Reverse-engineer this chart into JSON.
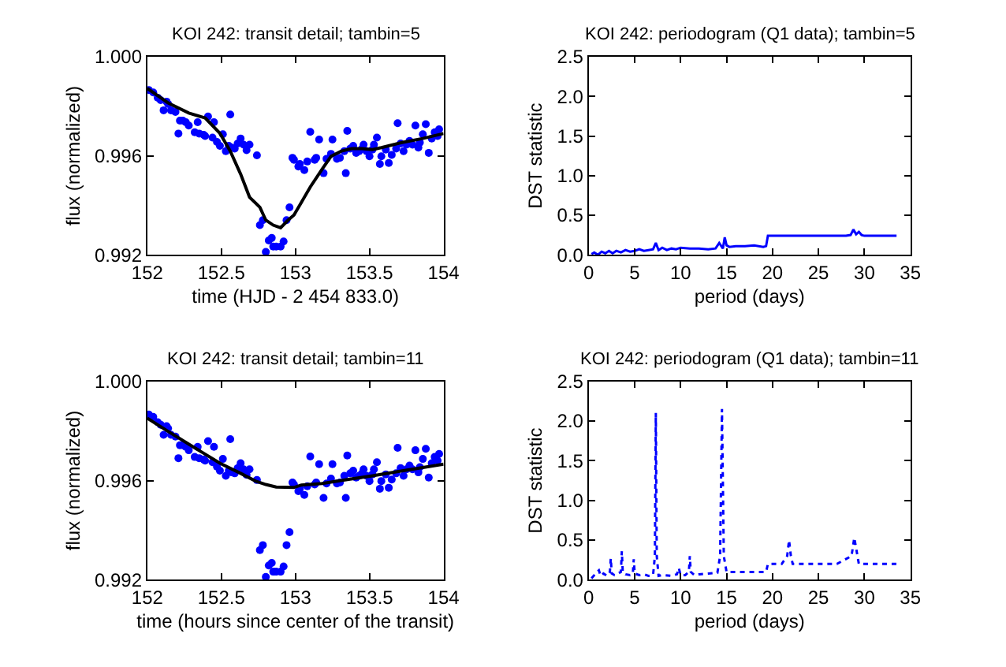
{
  "chart_data": [
    {
      "type": "scatter",
      "title": "KOI 242: transit detail; tambin=5",
      "xlabel": "time (HJD - 2 454 833.0)",
      "ylabel": "flux (normalized)",
      "xlim": [
        152,
        154
      ],
      "ylim": [
        0.992,
        1.0
      ],
      "xticks": [
        152,
        152.5,
        153,
        153.5,
        154
      ],
      "yticks": [
        {
          "value": 0.992,
          "label": "0.992"
        },
        {
          "value": 0.996,
          "label": "0.996"
        },
        {
          "value": 1.0,
          "label": "1.000"
        }
      ],
      "series": [
        {
          "marker": "circle",
          "color": "#0000ff",
          "x": [
            152.01,
            152.04,
            152.07,
            152.09,
            152.11,
            152.13,
            152.14,
            152.16,
            152.19,
            152.21,
            152.22,
            152.24,
            152.26,
            152.28,
            152.32,
            152.34,
            152.35,
            152.38,
            152.39,
            152.41,
            152.44,
            152.45,
            152.47,
            152.49,
            152.51,
            152.53,
            152.55,
            152.56,
            152.57,
            152.59,
            152.61,
            152.63,
            152.65,
            152.67,
            152.69,
            152.74,
            152.76,
            152.78,
            152.8,
            152.82,
            152.84,
            152.85,
            152.87,
            152.9,
            152.92,
            152.94,
            152.96,
            152.98,
            152.99,
            153.02,
            153.03,
            153.06,
            153.08,
            153.1,
            153.13,
            153.14,
            153.16,
            153.19,
            153.21,
            153.24,
            153.25,
            153.28,
            153.3,
            153.33,
            153.34,
            153.35,
            153.37,
            153.39,
            153.41,
            153.43,
            153.45,
            153.46,
            153.48,
            153.5,
            153.52,
            153.53,
            153.55,
            153.57,
            153.58,
            153.61,
            153.63,
            153.65,
            153.68,
            153.69,
            153.71,
            153.73,
            153.75,
            153.77,
            153.79,
            153.81,
            153.83,
            153.84,
            153.86,
            153.88,
            153.9,
            153.92,
            153.94,
            153.96,
            153.97
          ],
          "values": [
            0.99866,
            0.99856,
            0.99835,
            0.99825,
            0.99784,
            0.99819,
            0.9981,
            0.99784,
            0.99777,
            0.9969,
            0.99742,
            0.99742,
            0.99736,
            0.99722,
            0.99695,
            0.99736,
            0.9969,
            0.99685,
            0.9968,
            0.99759,
            0.99674,
            0.99736,
            0.99656,
            0.9964,
            0.99687,
            0.99619,
            0.9964,
            0.99767,
            0.99633,
            0.99629,
            0.9965,
            0.9967,
            0.99645,
            0.99623,
            0.99645,
            0.99602,
            0.9932,
            0.9934,
            0.99212,
            0.99258,
            0.99268,
            0.99233,
            0.99233,
            0.99233,
            0.99254,
            0.9934,
            0.99392,
            0.99592,
            0.99584,
            0.99557,
            0.99567,
            0.99542,
            0.99577,
            0.99697,
            0.99584,
            0.99592,
            0.99666,
            0.9953,
            0.99588,
            0.99608,
            0.99666,
            0.99588,
            0.99592,
            0.99619,
            0.9953,
            0.99701,
            0.99629,
            0.9964,
            0.99612,
            0.99619,
            0.99629,
            0.99645,
            0.99619,
            0.99598,
            0.99625,
            0.99645,
            0.99674,
            0.99567,
            0.99598,
            0.99625,
            0.99571,
            0.99604,
            0.99629,
            0.99732,
            0.9965,
            0.99619,
            0.99645,
            0.9966,
            0.99645,
            0.99722,
            0.99633,
            0.99654,
            0.99687,
            0.99728,
            0.99612,
            0.9967,
            0.99695,
            0.9968,
            0.99707
          ]
        },
        {
          "type": "line",
          "color": "#000000",
          "x": [
            152,
            152.14,
            152.28,
            152.39,
            152.49,
            152.56,
            152.63,
            152.69,
            152.76,
            152.8,
            152.85,
            152.9,
            152.95,
            152.99,
            153.04,
            153.1,
            153.18,
            153.24,
            153.31,
            153.38,
            153.45,
            153.52,
            153.58,
            153.72,
            153.86,
            154
          ],
          "values": [
            0.99872,
            0.99814,
            0.99773,
            0.99753,
            0.99691,
            0.99619,
            0.99526,
            0.99433,
            0.99392,
            0.9934,
            0.9932,
            0.99309,
            0.9934,
            0.99361,
            0.99412,
            0.99474,
            0.99546,
            0.99598,
            0.99619,
            0.99629,
            0.99629,
            0.99625,
            0.99633,
            0.99654,
            0.9967,
            0.9969
          ]
        }
      ]
    },
    {
      "type": "line",
      "title": "KOI 242: periodogram (Q1 data); tambin=5",
      "xlabel": "period (days)",
      "ylabel": "DST statistic",
      "xlim": [
        0,
        35
      ],
      "ylim": [
        0,
        2.5
      ],
      "xticks": [
        0,
        5,
        10,
        15,
        20,
        25,
        30,
        35
      ],
      "yticks": [
        {
          "value": 0,
          "label": "0.0"
        },
        {
          "value": 0.5,
          "label": "0.5"
        },
        {
          "value": 1,
          "label": "1.0"
        },
        {
          "value": 1.5,
          "label": "1.5"
        },
        {
          "value": 2,
          "label": "2.0"
        },
        {
          "value": 2.5,
          "label": "2.5"
        }
      ],
      "series": [
        {
          "line_style": "solid",
          "color": "#0000ff",
          "x": [
            0.3,
            0.6,
            1,
            1.4,
            1.8,
            2.2,
            2.6,
            3,
            3.5,
            4,
            4.5,
            5,
            5.5,
            6,
            6.5,
            7,
            7.3,
            7.6,
            8,
            8.5,
            9,
            9.5,
            10,
            11,
            12,
            13,
            13.8,
            14.2,
            14.6,
            14.8,
            15,
            15.3,
            16,
            17,
            18,
            19,
            19.3,
            19.5,
            20,
            22,
            24,
            26,
            28,
            28.5,
            28.8,
            29.1,
            29.4,
            29.7,
            30,
            31,
            32,
            33.5
          ],
          "values": [
            0.01,
            0.03,
            0.0,
            0.04,
            0.02,
            0.05,
            0.02,
            0.05,
            0.03,
            0.06,
            0.04,
            0.05,
            0.07,
            0.05,
            0.06,
            0.07,
            0.15,
            0.06,
            0.09,
            0.06,
            0.08,
            0.07,
            0.09,
            0.08,
            0.08,
            0.07,
            0.08,
            0.15,
            0.08,
            0.22,
            0.12,
            0.1,
            0.11,
            0.11,
            0.12,
            0.1,
            0.11,
            0.24,
            0.24,
            0.24,
            0.24,
            0.24,
            0.24,
            0.25,
            0.32,
            0.26,
            0.29,
            0.25,
            0.24,
            0.24,
            0.24,
            0.24
          ]
        }
      ]
    },
    {
      "type": "scatter",
      "title": "KOI 242: transit detail; tambin=11",
      "xlabel": "time (hours since center of the transit)",
      "ylabel": "flux (normalized)",
      "xlim": [
        152,
        154
      ],
      "ylim": [
        0.992,
        1.0
      ],
      "xticks": [
        152,
        152.5,
        153,
        153.5,
        154
      ],
      "yticks": [
        {
          "value": 0.992,
          "label": "0.992"
        },
        {
          "value": 0.996,
          "label": "0.996"
        },
        {
          "value": 1.0,
          "label": "1.000"
        }
      ],
      "series": [
        {
          "marker": "circle",
          "color": "#0000ff",
          "x": [
            152.01,
            152.04,
            152.07,
            152.09,
            152.11,
            152.13,
            152.14,
            152.16,
            152.19,
            152.21,
            152.22,
            152.24,
            152.26,
            152.28,
            152.32,
            152.34,
            152.35,
            152.38,
            152.39,
            152.41,
            152.44,
            152.45,
            152.47,
            152.49,
            152.51,
            152.53,
            152.55,
            152.56,
            152.57,
            152.59,
            152.61,
            152.63,
            152.65,
            152.67,
            152.69,
            152.74,
            152.76,
            152.78,
            152.8,
            152.82,
            152.84,
            152.85,
            152.87,
            152.9,
            152.92,
            152.94,
            152.96,
            152.98,
            152.99,
            153.02,
            153.03,
            153.06,
            153.08,
            153.1,
            153.13,
            153.14,
            153.16,
            153.19,
            153.21,
            153.24,
            153.25,
            153.28,
            153.3,
            153.33,
            153.34,
            153.35,
            153.37,
            153.39,
            153.41,
            153.43,
            153.45,
            153.46,
            153.48,
            153.5,
            153.52,
            153.53,
            153.55,
            153.57,
            153.58,
            153.61,
            153.63,
            153.65,
            153.68,
            153.69,
            153.71,
            153.73,
            153.75,
            153.77,
            153.79,
            153.81,
            153.83,
            153.84,
            153.86,
            153.88,
            153.9,
            153.92,
            153.94,
            153.96,
            153.97
          ],
          "values": [
            0.99866,
            0.99856,
            0.99835,
            0.99825,
            0.99784,
            0.99819,
            0.9981,
            0.99784,
            0.99777,
            0.9969,
            0.99742,
            0.99742,
            0.99736,
            0.99722,
            0.99695,
            0.99736,
            0.9969,
            0.99685,
            0.9968,
            0.99759,
            0.99674,
            0.99736,
            0.99656,
            0.9964,
            0.99687,
            0.99619,
            0.9964,
            0.99767,
            0.99633,
            0.99629,
            0.9965,
            0.9967,
            0.99645,
            0.99623,
            0.99645,
            0.99602,
            0.9932,
            0.9934,
            0.99212,
            0.99258,
            0.99268,
            0.99233,
            0.99233,
            0.99233,
            0.99254,
            0.9934,
            0.99392,
            0.99592,
            0.99584,
            0.99557,
            0.99567,
            0.99542,
            0.99577,
            0.99697,
            0.99584,
            0.99592,
            0.99666,
            0.9953,
            0.99588,
            0.99608,
            0.99666,
            0.99588,
            0.99592,
            0.99619,
            0.9953,
            0.99701,
            0.99629,
            0.9964,
            0.99612,
            0.99619,
            0.99629,
            0.99645,
            0.99619,
            0.99598,
            0.99625,
            0.99645,
            0.99674,
            0.99567,
            0.99598,
            0.99625,
            0.99571,
            0.99604,
            0.99629,
            0.99732,
            0.9965,
            0.99619,
            0.99645,
            0.9966,
            0.99645,
            0.99722,
            0.99633,
            0.99654,
            0.99687,
            0.99728,
            0.99612,
            0.9967,
            0.99695,
            0.9968,
            0.99707
          ]
        },
        {
          "type": "line",
          "color": "#000000",
          "x": [
            152,
            152.14,
            152.32,
            152.49,
            152.63,
            152.73,
            152.8,
            152.87,
            152.99,
            153.04,
            153.18,
            153.35,
            153.52,
            153.72,
            154
          ],
          "values": [
            0.99851,
            0.99798,
            0.99732,
            0.9967,
            0.99629,
            0.99598,
            0.99584,
            0.99574,
            0.99572,
            0.99582,
            0.99588,
            0.99604,
            0.99619,
            0.99639,
            0.99666
          ]
        }
      ]
    },
    {
      "type": "line",
      "title": "KOI 242: periodogram (Q1 data); tambin=11",
      "xlabel": "period (days)",
      "ylabel": "DST statistic",
      "xlim": [
        0,
        35
      ],
      "ylim": [
        0,
        2.5
      ],
      "xticks": [
        0,
        5,
        10,
        15,
        20,
        25,
        30,
        35
      ],
      "yticks": [
        {
          "value": 0,
          "label": "0.0"
        },
        {
          "value": 0.5,
          "label": "0.5"
        },
        {
          "value": 1,
          "label": "1.0"
        },
        {
          "value": 1.5,
          "label": "1.5"
        },
        {
          "value": 2,
          "label": "2.0"
        },
        {
          "value": 2.5,
          "label": "2.5"
        }
      ],
      "series": [
        {
          "line_style": "dotted",
          "color": "#0000ff",
          "x": [
            0.3,
            0.6,
            0.9,
            1.1,
            1.3,
            1.6,
            2,
            2.3,
            2.4,
            2.5,
            2.8,
            3.2,
            3.5,
            3.6,
            3.7,
            4,
            4.5,
            4.8,
            4.9,
            5,
            5.5,
            6,
            6.5,
            7,
            7.2,
            7.3,
            7.4,
            7.6,
            8,
            9,
            9.6,
            9.8,
            10,
            10.5,
            10.9,
            11,
            11.1,
            11.5,
            12,
            13,
            14,
            14.3,
            14.5,
            14.7,
            15,
            16,
            17,
            18,
            19,
            19.3,
            19.5,
            20,
            21,
            21.6,
            21.8,
            22,
            22.2,
            23,
            25,
            27,
            28.6,
            28.9,
            29.1,
            29.4,
            29.7,
            31,
            33.5
          ],
          "values": [
            0.02,
            0.06,
            0.1,
            0.12,
            0.05,
            0.08,
            0.05,
            0.1,
            0.27,
            0.08,
            0.06,
            0.08,
            0.1,
            0.36,
            0.1,
            0.07,
            0.06,
            0.08,
            0.26,
            0.08,
            0.06,
            0.07,
            0.05,
            0.06,
            0.3,
            2.1,
            0.3,
            0.05,
            0.06,
            0.05,
            0.07,
            0.15,
            0.06,
            0.06,
            0.1,
            0.3,
            0.1,
            0.06,
            0.07,
            0.08,
            0.09,
            0.3,
            2.15,
            0.3,
            0.1,
            0.1,
            0.1,
            0.1,
            0.1,
            0.1,
            0.2,
            0.2,
            0.2,
            0.3,
            0.5,
            0.3,
            0.2,
            0.2,
            0.2,
            0.2,
            0.3,
            0.53,
            0.4,
            0.2,
            0.2,
            0.2,
            0.2
          ]
        }
      ]
    }
  ]
}
